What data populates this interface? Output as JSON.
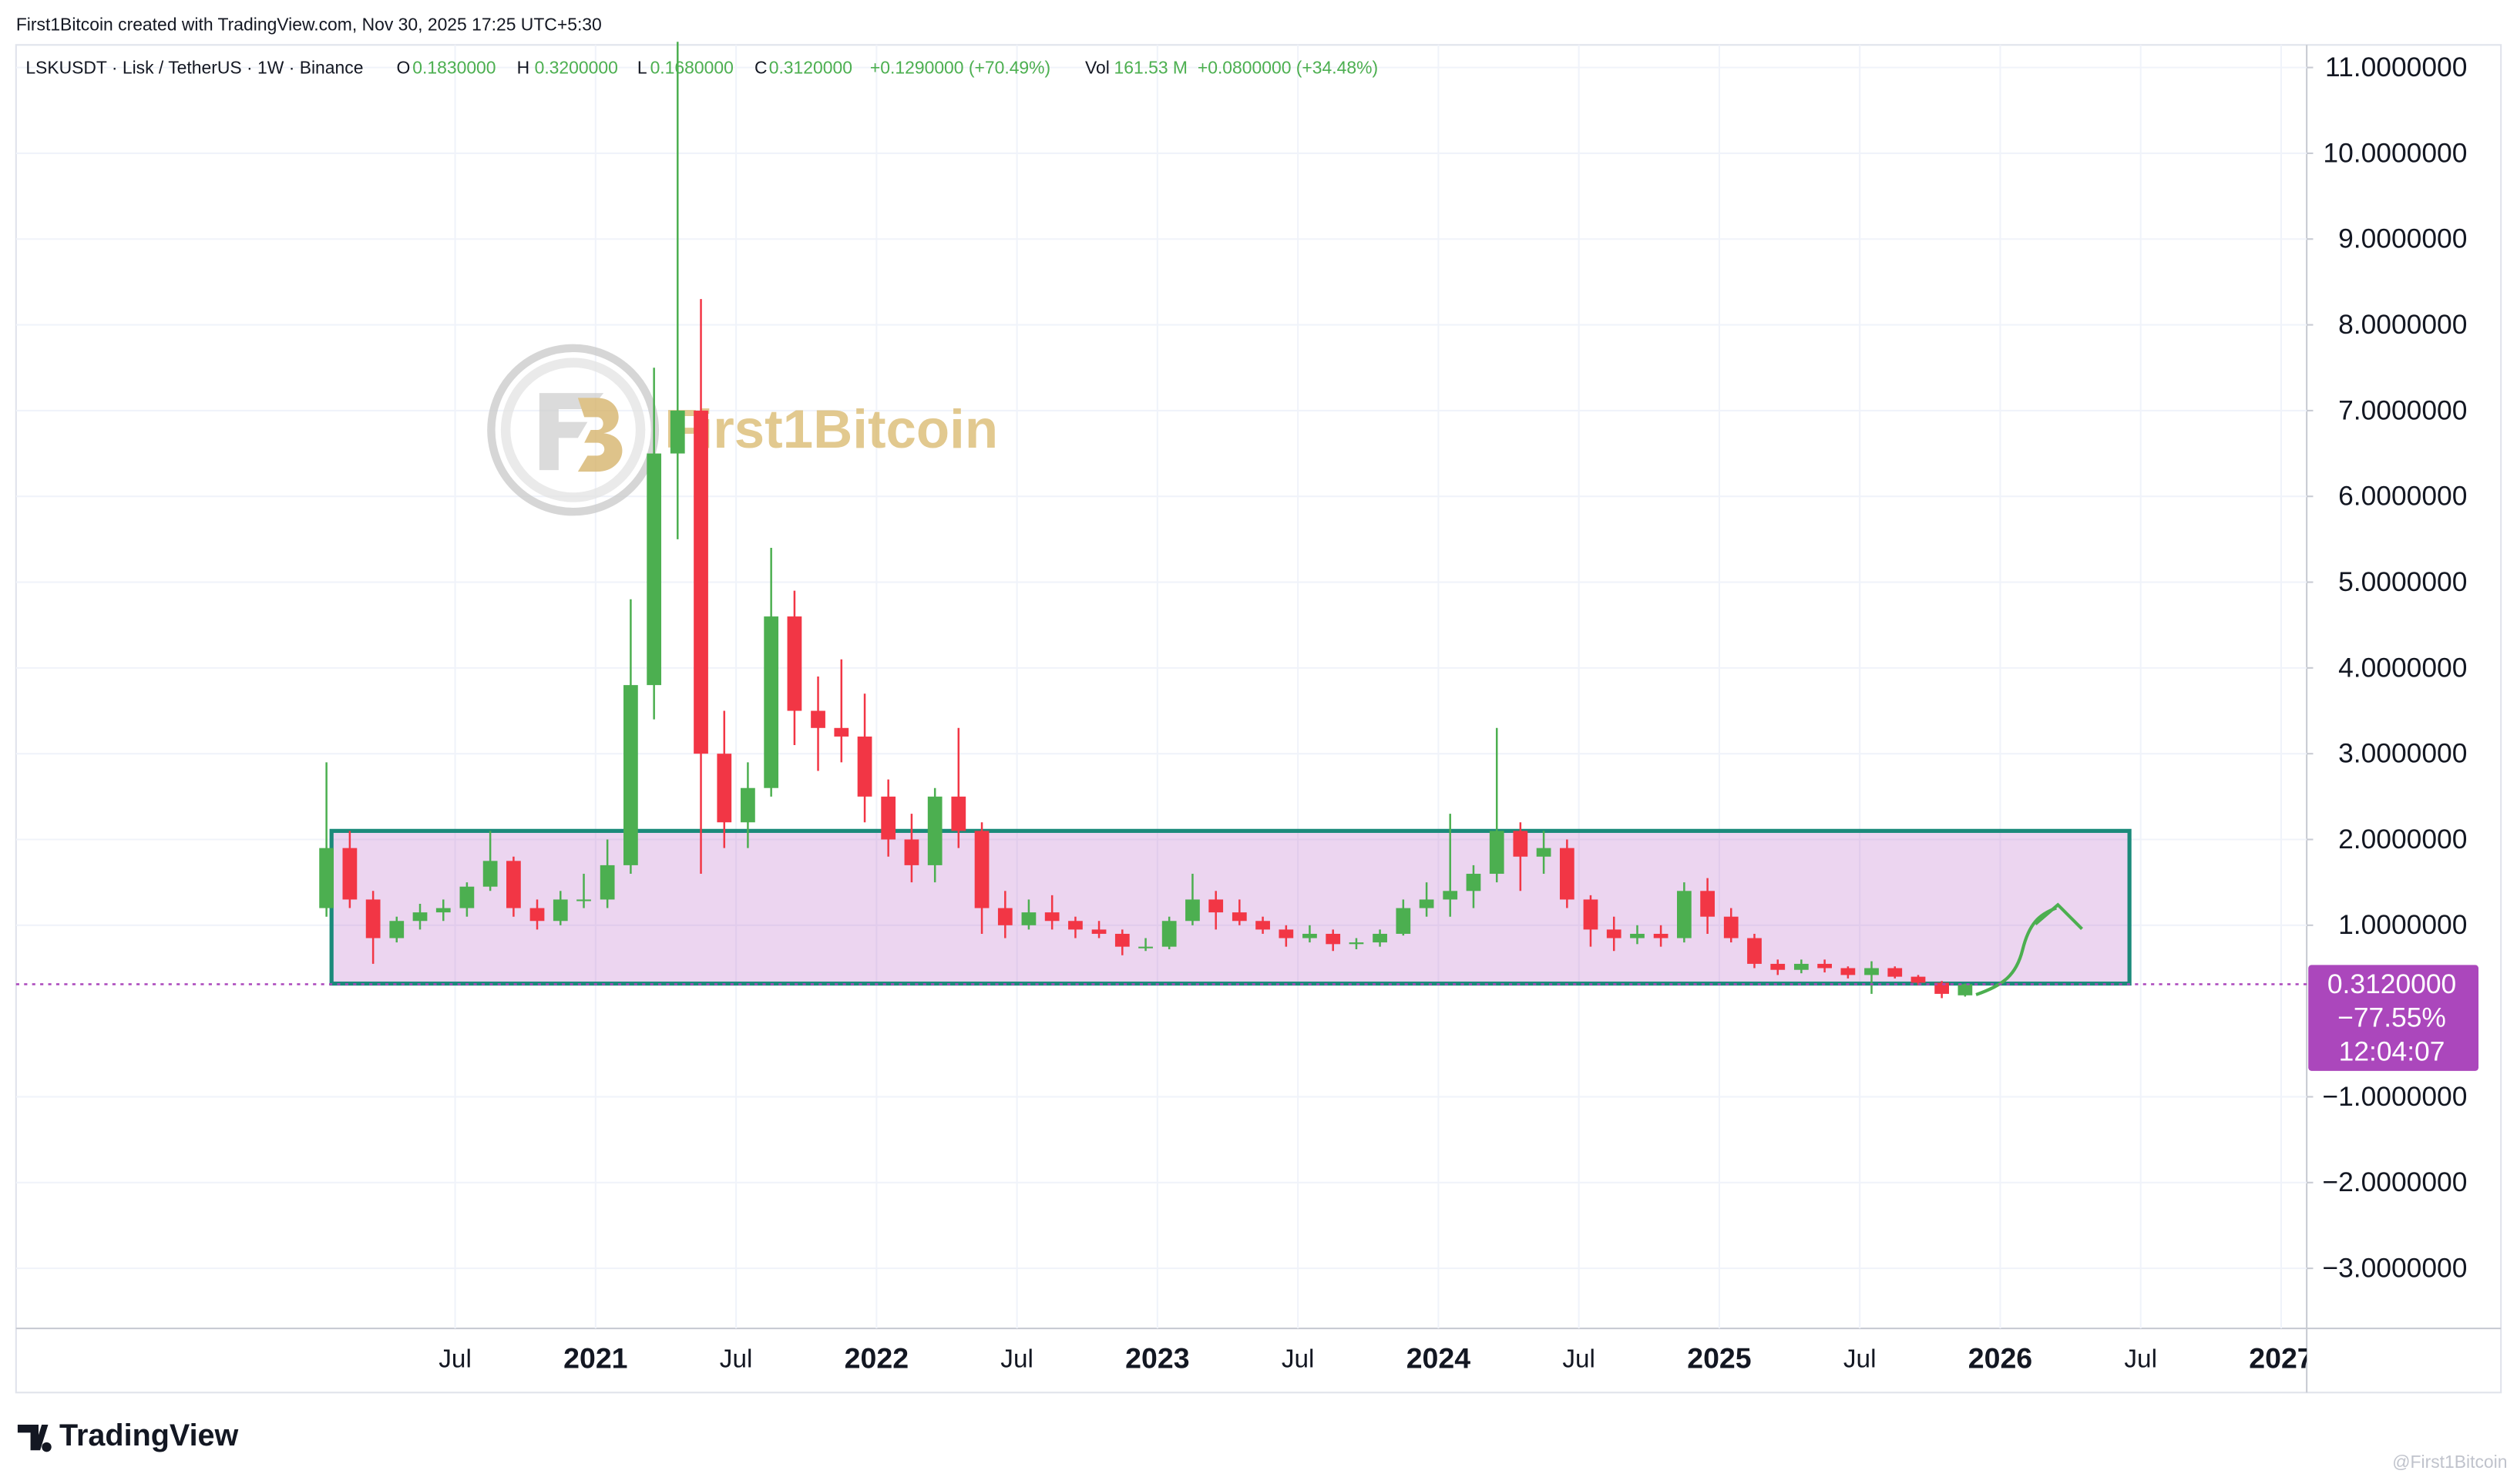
{
  "attribution": "First1Bitcoin created with TradingView.com, Nov 30, 2025 17:25 UTC+5:30",
  "brand": "TradingView",
  "watermark": "First1Bitcoin",
  "corner_watermark": "@First1Bitcoin",
  "chart_data": {
    "type": "candlestick",
    "symbol": "LSKUSDT · Lisk / TetherUS · 1W · Binance",
    "ohlc": [
      {
        "name": "O",
        "value": 0.183,
        "label": "0.1830000"
      },
      {
        "name": "H",
        "value": 0.32,
        "label": "0.3200000"
      },
      {
        "name": "L",
        "value": 0.168,
        "label": "0.1680000"
      },
      {
        "name": "C",
        "value": 0.312,
        "label": "0.3120000"
      }
    ],
    "change": "+0.1290000 (+70.49%)",
    "volume_name": "Vol",
    "volume": "161.53 M",
    "volume_change": "+0.0800000 (+34.48%)",
    "up_color": "#4caf50",
    "down_color": "#f23645",
    "grid": true,
    "x": [
      2020.042,
      2020.125,
      2020.208,
      2020.292,
      2020.375,
      2020.458,
      2020.542,
      2020.625,
      2020.708,
      2020.792,
      2020.875,
      2020.958,
      2021.042,
      2021.125,
      2021.208,
      2021.292,
      2021.375,
      2021.458,
      2021.542,
      2021.625,
      2021.708,
      2021.792,
      2021.875,
      2021.958,
      2022.042,
      2022.125,
      2022.208,
      2022.292,
      2022.375,
      2022.458,
      2022.542,
      2022.625,
      2022.708,
      2022.792,
      2022.875,
      2022.958,
      2023.042,
      2023.125,
      2023.208,
      2023.292,
      2023.375,
      2023.458,
      2023.542,
      2023.625,
      2023.708,
      2023.792,
      2023.875,
      2023.958,
      2024.042,
      2024.125,
      2024.208,
      2024.292,
      2024.375,
      2024.458,
      2024.542,
      2024.625,
      2024.708,
      2024.792,
      2024.875,
      2024.958,
      2025.042,
      2025.125,
      2025.208,
      2025.292,
      2025.375,
      2025.458,
      2025.542,
      2025.625,
      2025.708,
      2025.792,
      2025.875
    ],
    "open": [
      1.2,
      1.9,
      1.3,
      0.85,
      1.05,
      1.15,
      1.2,
      1.45,
      1.75,
      1.2,
      1.05,
      1.3,
      1.3,
      1.7,
      3.8,
      6.5,
      7.0,
      3.0,
      2.2,
      2.6,
      4.6,
      3.5,
      3.3,
      3.2,
      2.5,
      2.0,
      1.7,
      2.5,
      2.1,
      1.2,
      1.0,
      1.15,
      1.05,
      0.95,
      0.9,
      0.75,
      0.75,
      1.05,
      1.3,
      1.15,
      1.05,
      0.95,
      0.85,
      0.9,
      0.78,
      0.8,
      0.9,
      1.2,
      1.3,
      1.4,
      1.6,
      2.1,
      1.8,
      1.9,
      1.3,
      0.95,
      0.85,
      0.9,
      0.85,
      1.4,
      1.1,
      0.85,
      0.55,
      0.48,
      0.55,
      0.5,
      0.42,
      0.5,
      0.4,
      0.33,
      0.183
    ],
    "high": [
      2.9,
      2.1,
      1.4,
      1.1,
      1.25,
      1.3,
      1.5,
      2.1,
      1.8,
      1.3,
      1.4,
      1.6,
      2.0,
      4.8,
      7.5,
      11.3,
      8.3,
      3.5,
      2.9,
      5.4,
      4.9,
      3.9,
      4.1,
      3.7,
      2.7,
      2.3,
      2.6,
      3.3,
      2.2,
      1.4,
      1.3,
      1.35,
      1.1,
      1.05,
      0.95,
      0.85,
      1.1,
      1.6,
      1.4,
      1.3,
      1.1,
      1.0,
      1.0,
      0.95,
      0.85,
      0.95,
      1.3,
      1.5,
      2.3,
      1.7,
      3.3,
      2.2,
      2.1,
      2.0,
      1.35,
      1.1,
      1.0,
      1.0,
      1.5,
      1.55,
      1.2,
      0.9,
      0.6,
      0.6,
      0.6,
      0.52,
      0.58,
      0.52,
      0.42,
      0.35,
      0.32
    ],
    "low": [
      1.1,
      1.2,
      0.55,
      0.8,
      0.95,
      1.05,
      1.1,
      1.4,
      1.1,
      0.95,
      1.0,
      1.2,
      1.2,
      1.6,
      3.4,
      5.5,
      1.6,
      1.9,
      1.9,
      2.5,
      3.1,
      2.8,
      2.9,
      2.2,
      1.8,
      1.5,
      1.5,
      1.9,
      0.9,
      0.85,
      0.95,
      0.95,
      0.85,
      0.85,
      0.65,
      0.7,
      0.72,
      1.0,
      0.95,
      1.0,
      0.9,
      0.75,
      0.8,
      0.7,
      0.72,
      0.75,
      0.88,
      1.1,
      1.1,
      1.2,
      1.5,
      1.4,
      1.6,
      1.2,
      0.75,
      0.7,
      0.78,
      0.75,
      0.8,
      0.9,
      0.8,
      0.5,
      0.42,
      0.44,
      0.45,
      0.38,
      0.2,
      0.38,
      0.3,
      0.15,
      0.168
    ],
    "close": [
      1.9,
      1.3,
      0.85,
      1.05,
      1.15,
      1.2,
      1.45,
      1.75,
      1.2,
      1.05,
      1.3,
      1.3,
      1.7,
      3.8,
      6.5,
      7.0,
      3.0,
      2.2,
      2.6,
      4.6,
      3.5,
      3.3,
      3.2,
      2.5,
      2.0,
      1.7,
      2.5,
      2.1,
      1.2,
      1.0,
      1.15,
      1.05,
      0.95,
      0.9,
      0.75,
      0.75,
      1.05,
      1.3,
      1.15,
      1.05,
      0.95,
      0.85,
      0.9,
      0.78,
      0.8,
      0.9,
      1.2,
      1.3,
      1.4,
      1.6,
      2.1,
      1.8,
      1.9,
      1.3,
      0.95,
      0.85,
      0.9,
      0.85,
      1.4,
      1.1,
      0.85,
      0.55,
      0.48,
      0.55,
      0.5,
      0.42,
      0.5,
      0.4,
      0.33,
      0.2,
      0.312
    ],
    "xlim": [
      2018.937,
      2027.091
    ],
    "xticks": [
      {
        "value": 2020.5,
        "label": "Jul"
      },
      2021,
      {
        "value": 2021.5,
        "label": "Jul"
      },
      2022,
      {
        "value": 2022.5,
        "label": "Jul"
      },
      2023,
      {
        "value": 2023.5,
        "label": "Jul"
      },
      2024,
      {
        "value": 2024.5,
        "label": "Jul"
      },
      2025,
      {
        "value": 2025.5,
        "label": "Jul"
      },
      2026,
      {
        "value": 2026.5,
        "label": "Jul"
      },
      2027
    ],
    "ylim": [
      -3.7,
      11.6
    ],
    "yticks": [
      {
        "value": -3,
        "label": "−3.0000000"
      },
      {
        "value": -2,
        "label": "−2.0000000"
      },
      {
        "value": -1,
        "label": "−1.0000000"
      },
      {
        "value": 1,
        "label": "1.0000000"
      },
      {
        "value": 2,
        "label": "2.0000000"
      },
      {
        "value": 3,
        "label": "3.0000000"
      },
      {
        "value": 4,
        "label": "4.0000000"
      },
      {
        "value": 5,
        "label": "5.0000000"
      },
      {
        "value": 6,
        "label": "6.0000000"
      },
      {
        "value": 7,
        "label": "7.0000000"
      },
      {
        "value": 8,
        "label": "8.0000000"
      },
      {
        "value": 9,
        "label": "9.0000000"
      },
      {
        "value": 10,
        "label": "10.0000000"
      },
      {
        "value": 11,
        "label": "11.0000000"
      }
    ],
    "last_price": {
      "value": 0.312,
      "label": "0.3120000"
    },
    "last_change": "−77.55%",
    "countdown": "12:04:07",
    "support_zone": {
      "x": [
        2020.06,
        2026.46
      ],
      "y": [
        0.32,
        2.1
      ]
    }
  }
}
